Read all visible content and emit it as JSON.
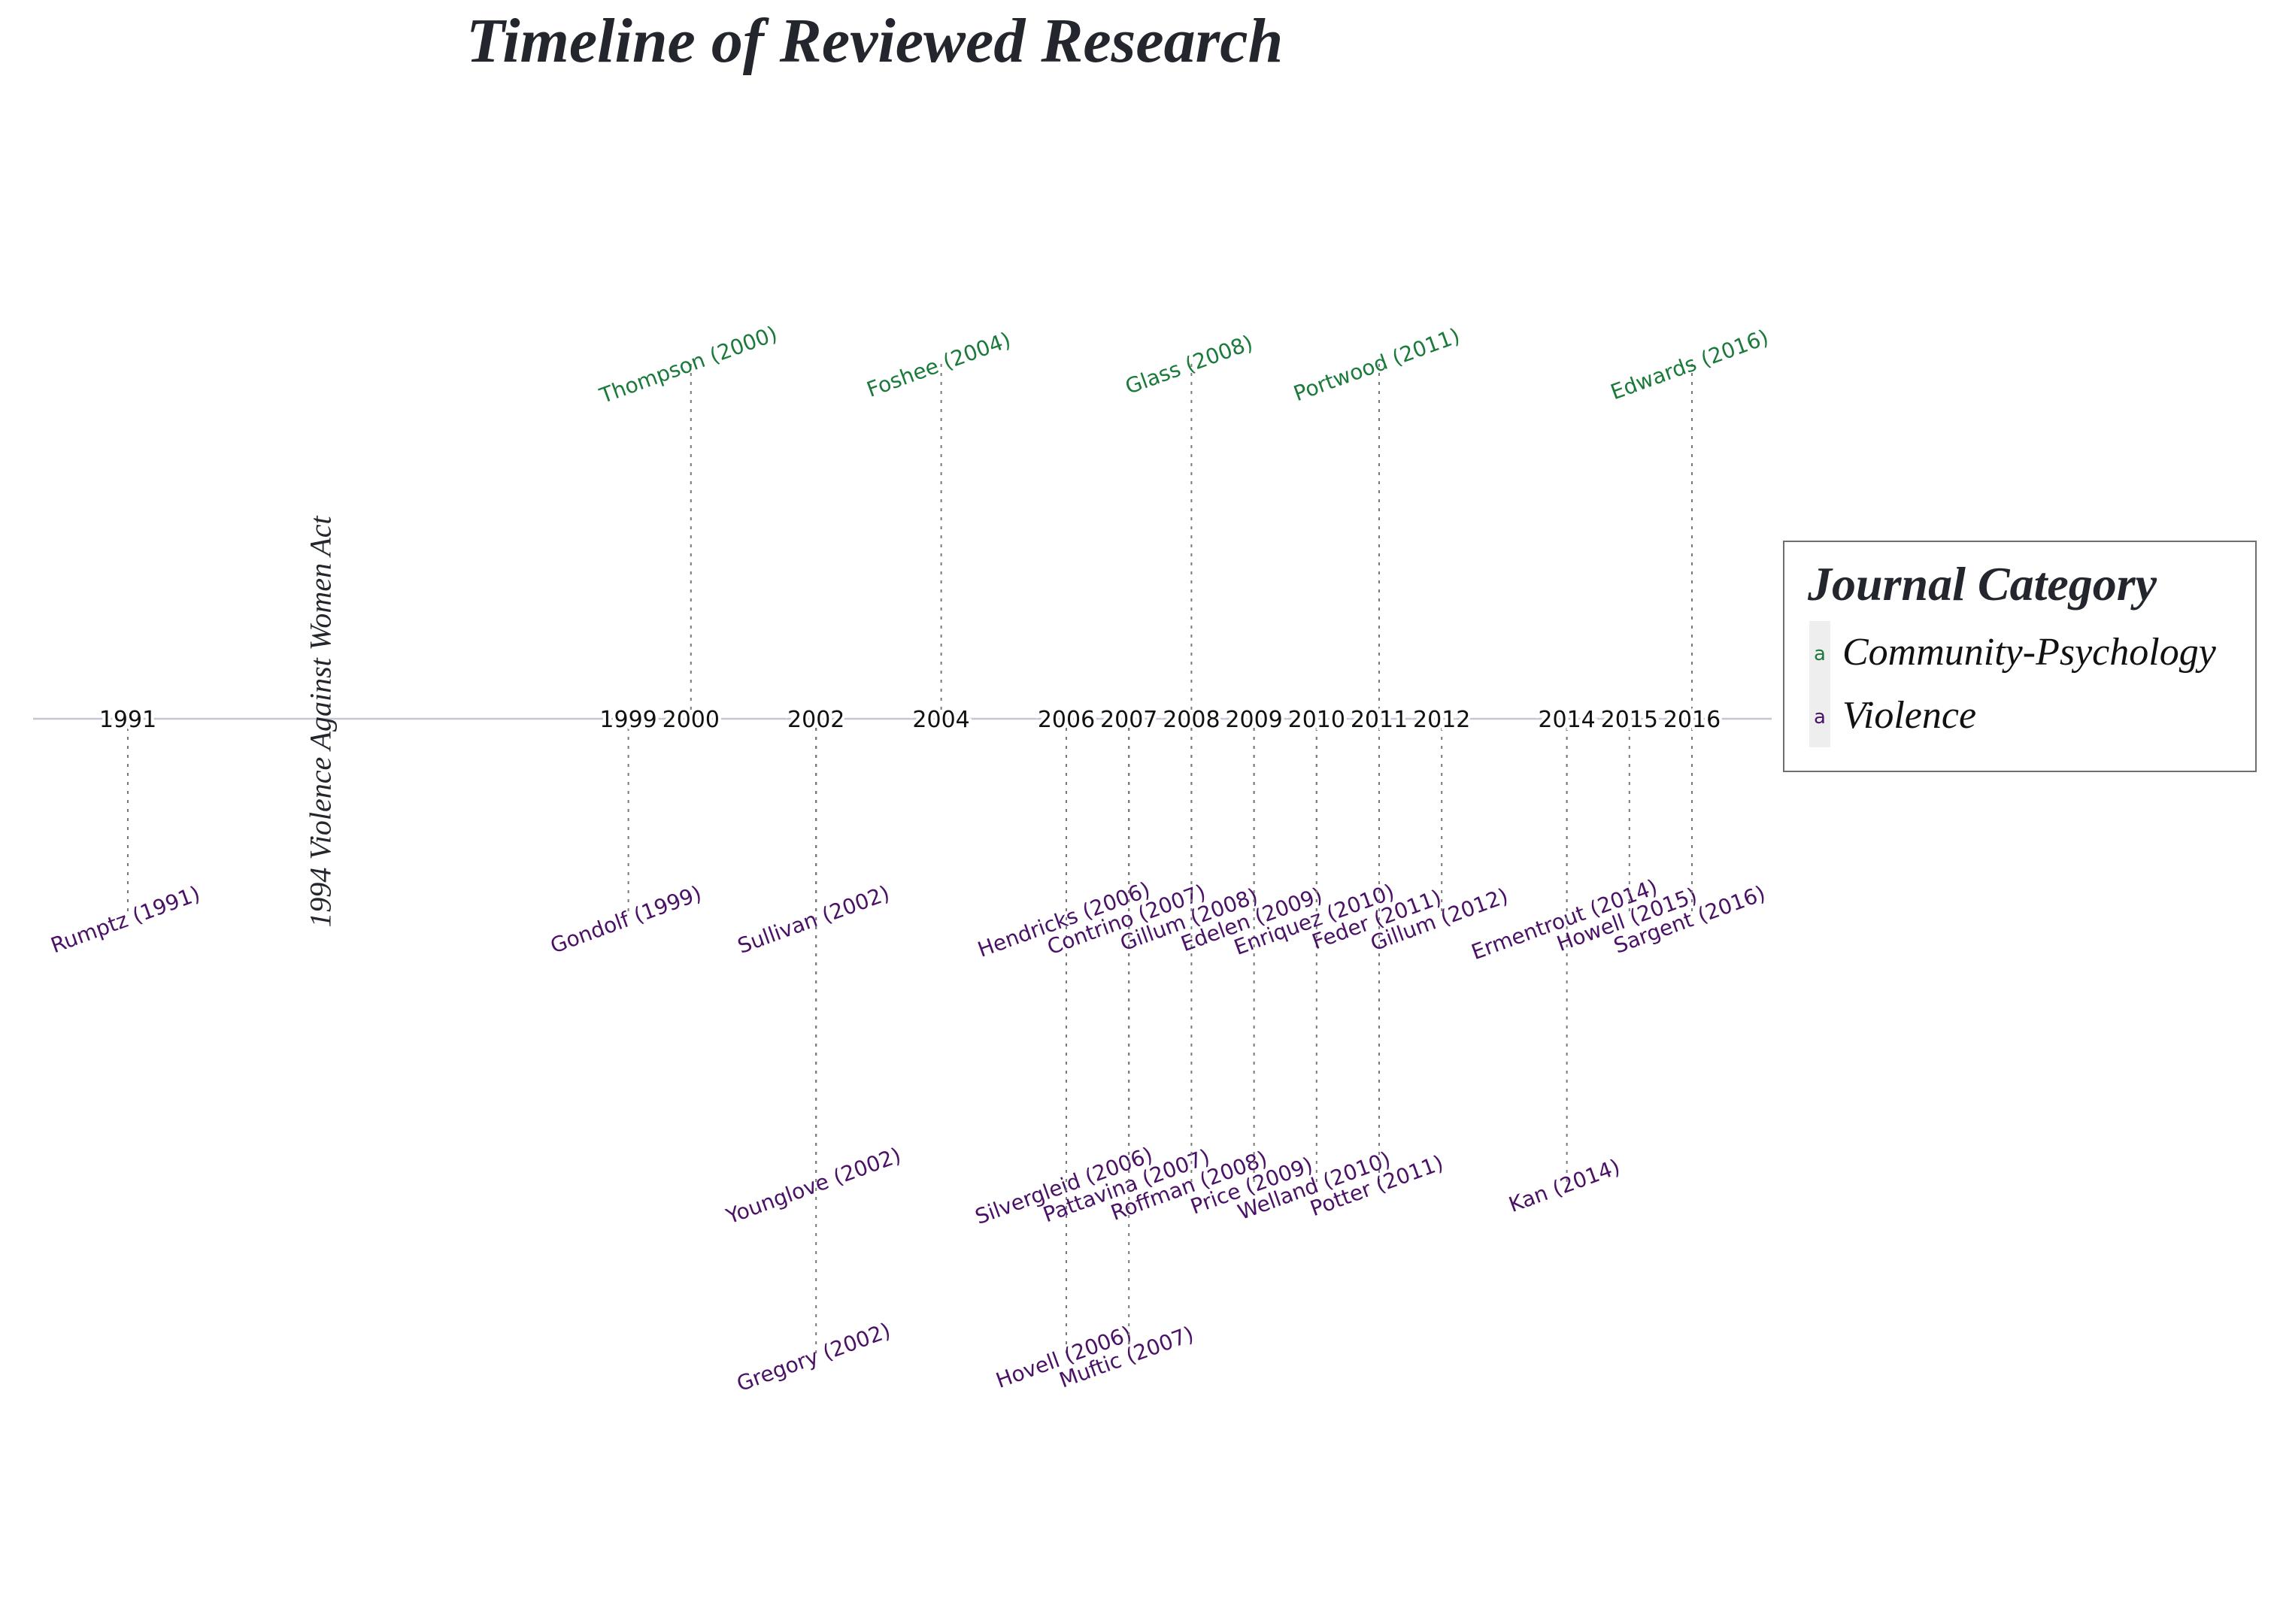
{
  "chart_data": {
    "type": "timeline",
    "title": "Timeline of Reviewed Research",
    "annotation": "1994 Violence Against Women Act",
    "annotation_year": 1994,
    "year_ticks": [
      1991,
      1999,
      2000,
      2002,
      2004,
      2006,
      2007,
      2008,
      2009,
      2010,
      2011,
      2012,
      2014,
      2015,
      2016
    ],
    "legend": {
      "title": "Journal Category",
      "key_glyph": "a",
      "items": [
        {
          "name": "Community-Psychology",
          "color": "#1a7a3a"
        },
        {
          "name": "Violence",
          "color": "#4a1166"
        }
      ]
    },
    "series": [
      {
        "name": "Community-Psychology",
        "color": "#1a7a3a",
        "points": [
          {
            "label": "Thompson (2000)",
            "year": 2000,
            "level": 1
          },
          {
            "label": "Foshee (2004)",
            "year": 2004,
            "level": 1
          },
          {
            "label": "Glass (2008)",
            "year": 2008,
            "level": 1
          },
          {
            "label": "Portwood (2011)",
            "year": 2011,
            "level": 1
          },
          {
            "label": "Edwards (2016)",
            "year": 2016,
            "level": 1
          }
        ]
      },
      {
        "name": "Violence",
        "color": "#4a1166",
        "points": [
          {
            "label": "Rumptz (1991)",
            "year": 1991,
            "level": -1
          },
          {
            "label": "Gondolf (1999)",
            "year": 1999,
            "level": -1
          },
          {
            "label": "Sullivan (2002)",
            "year": 2002,
            "level": -1
          },
          {
            "label": "Younglove (2002)",
            "year": 2002,
            "level": -2
          },
          {
            "label": "Gregory (2002)",
            "year": 2002,
            "level": -3
          },
          {
            "label": "Hendricks (2006)",
            "year": 2006,
            "level": -1
          },
          {
            "label": "Silvergleid (2006)",
            "year": 2006,
            "level": -2
          },
          {
            "label": "Hovell (2006)",
            "year": 2006,
            "level": -3
          },
          {
            "label": "Contrino (2007)",
            "year": 2007,
            "level": -1
          },
          {
            "label": "Pattavina (2007)",
            "year": 2007,
            "level": -2
          },
          {
            "label": "Muftic (2007)",
            "year": 2007,
            "level": -3
          },
          {
            "label": "Gillum (2008)",
            "year": 2008,
            "level": -1
          },
          {
            "label": "Roffman (2008)",
            "year": 2008,
            "level": -2
          },
          {
            "label": "Edelen (2009)",
            "year": 2009,
            "level": -1
          },
          {
            "label": "Price (2009)",
            "year": 2009,
            "level": -2
          },
          {
            "label": "Enriquez (2010)",
            "year": 2010,
            "level": -1
          },
          {
            "label": "Welland (2010)",
            "year": 2010,
            "level": -2
          },
          {
            "label": "Feder (2011)",
            "year": 2011,
            "level": -1
          },
          {
            "label": "Potter (2011)",
            "year": 2011,
            "level": -2
          },
          {
            "label": "Gillum (2012)",
            "year": 2012,
            "level": -1
          },
          {
            "label": "Ermentrout (2014)",
            "year": 2014,
            "level": -1
          },
          {
            "label": "Kan (2014)",
            "year": 2014,
            "level": -2
          },
          {
            "label": "Howell (2015)",
            "year": 2015,
            "level": -1
          },
          {
            "label": "Sargent (2016)",
            "year": 2016,
            "level": -1
          }
        ]
      }
    ]
  }
}
